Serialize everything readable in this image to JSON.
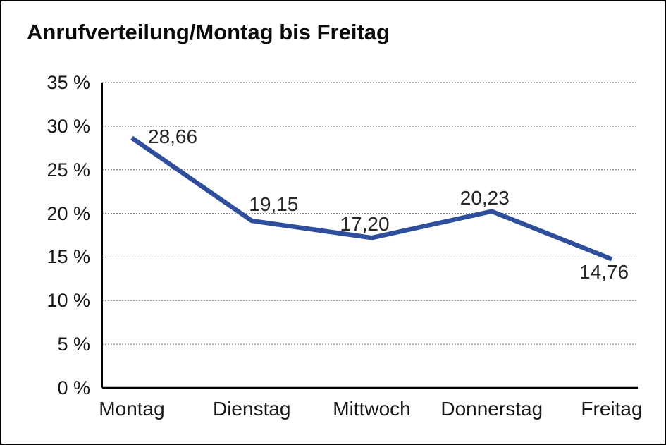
{
  "title": "Anrufverteilung/Montag bis Freitag",
  "chart_data": {
    "type": "line",
    "title": "Anrufverteilung/Montag bis Freitag",
    "categories": [
      "Montag",
      "Dienstag",
      "Mittwoch",
      "Donnerstag",
      "Freitag"
    ],
    "values": [
      28.66,
      19.15,
      17.2,
      20.23,
      14.76
    ],
    "value_labels": [
      "28,66",
      "19,15",
      "17,20",
      "20,23",
      "14,76"
    ],
    "xlabel": "",
    "ylabel": "",
    "ylim": [
      0,
      35
    ],
    "y_tick_values": [
      0,
      5,
      10,
      15,
      20,
      25,
      30,
      35
    ],
    "y_tick_labels": [
      "0 %",
      "5 %",
      "10 %",
      "15 %",
      "20 %",
      "25 %",
      "30 %",
      "35 %"
    ],
    "grid": "horizontal-dotted",
    "legend": "none",
    "line_color": "#2F4E9C"
  },
  "colors": {
    "line": "#2F4E9C",
    "axis": "#000000",
    "grid": "#6b6b6b",
    "text": "#161616",
    "background": "#FFFFFF",
    "border": "#000000"
  }
}
